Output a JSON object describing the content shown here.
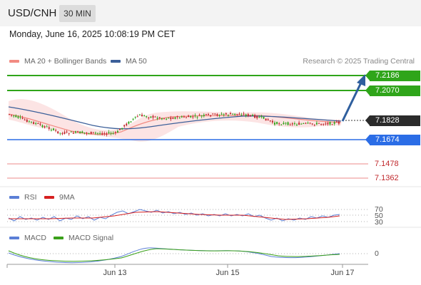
{
  "header": {
    "symbol": "USD/CNH",
    "timeframe": "30 MIN"
  },
  "timestamp": "Monday, June 16, 2025 10:08:19 PM CET",
  "price_panel": {
    "legend": [
      {
        "label": "MA 20 + Bollinger Bands",
        "color": "#f28b82"
      },
      {
        "label": "MA 50",
        "color": "#3b5f99"
      }
    ],
    "credit": "Research © 2025 Trading Central",
    "levels": [
      {
        "value": "7.2186",
        "color": "#2fa51a",
        "kind": "target"
      },
      {
        "value": "7.2070",
        "color": "#2fa51a",
        "kind": "target"
      },
      {
        "value": "7.1828",
        "color": "#2b2b2b",
        "kind": "current"
      },
      {
        "value": "7.1674",
        "color": "#2b6de6",
        "kind": "pivot"
      },
      {
        "value": "7.1478",
        "color": "#c0282c",
        "kind": "support"
      },
      {
        "value": "7.1362",
        "color": "#c0282c",
        "kind": "support"
      }
    ]
  },
  "rsi_panel": {
    "legend": [
      {
        "label": "RSI",
        "color": "#5b7fd6"
      },
      {
        "label": "9MA",
        "color": "#d62020"
      }
    ],
    "levels": [
      "70",
      "50",
      "30"
    ]
  },
  "macd_panel": {
    "legend": [
      {
        "label": "MACD",
        "color": "#5b7fd6"
      },
      {
        "label": "MACD Signal",
        "color": "#3aa01a"
      }
    ],
    "zero_label": "0"
  },
  "x_axis": {
    "labels": [
      "Jun 13",
      "Jun 15",
      "Jun 17"
    ]
  },
  "colors": {
    "bull_candle": "#2fa51a",
    "bear_candle": "#c0282c",
    "forecast_arrow": "#2f5f9e"
  }
}
